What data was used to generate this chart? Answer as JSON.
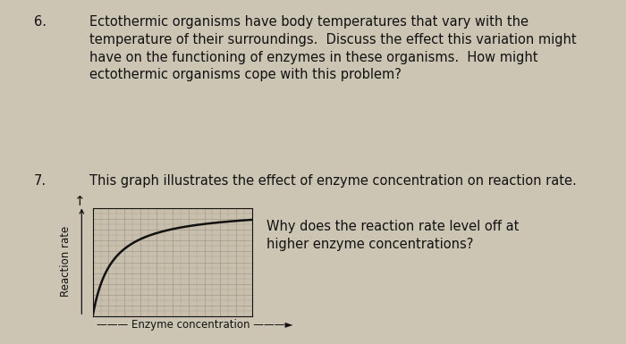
{
  "page_bg": "#cdc5b4",
  "chart_bg": "#c8bfad",
  "grid_color": "#a89f90",
  "line_color": "#111111",
  "line_width": 1.8,
  "xlabel": "Enzyme concentration",
  "ylabel": "Reaction rate",
  "q6_number": "6.",
  "q6_text": "Ectothermic organisms have body temperatures that vary with the\ntemperature of their surroundings.  Discuss the effect this variation might\nhave on the functioning of enzymes in these organisms.  How might\nectothermic organisms cope with this problem?",
  "q7_number": "7.",
  "q7_text": "This graph illustrates the effect of enzyme concentration on reaction rate.",
  "q7_right": "Why does the reaction rate level off at\nhigher enzyme concentrations?",
  "text_color": "#111111",
  "font_size": 10.5
}
